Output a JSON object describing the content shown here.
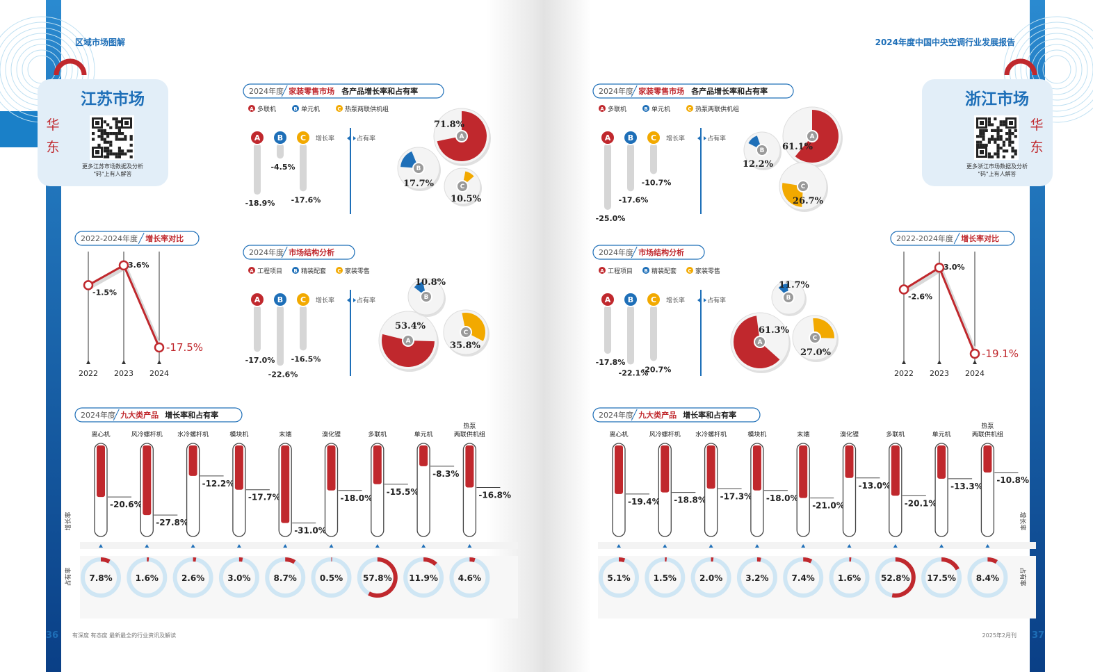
{
  "header": {
    "left": "区域市场图解",
    "right": "2024年度中国中央空调行业发展报告"
  },
  "footer": {
    "left_page": "36",
    "left_slogan": "有深度  有态度  最新最全的行业资讯及解读",
    "right_date": "2025年2月刊",
    "right_page": "37"
  },
  "colors": {
    "blue": "#1e6fb8",
    "red": "#c0282d",
    "light_red": "#e07070",
    "orange": "#f2a900",
    "ring": "#cfe6f4",
    "panel": "#e2eef8"
  },
  "labels": {
    "year2024": "2024年度",
    "years_range": "2022-2024年度",
    "growth_compare": "增长率对比",
    "retail": "家装零售市场",
    "retail_suffix": "各产品增长率和占有率",
    "structure": "市场结构分析",
    "nine_cat": "九大类产品",
    "nine_suffix": "增长率和占有率",
    "growth": "增长率",
    "share": "占有率",
    "growth_v": "增长率",
    "share_v": "占有率",
    "legend_products": [
      "多联机",
      "单元机",
      "热泵两联供机组"
    ],
    "legend_structure": [
      "工程项目",
      "精装配套",
      "家装零售"
    ]
  },
  "markets": [
    {
      "name": "江苏市场",
      "region": "华东",
      "qr_caption": "更多江苏市场数据及分析\n\"码\"上有人解答"
    },
    {
      "name": "浙江市场",
      "region": "华东",
      "qr_caption": "更多浙江市场数据及分析\n\"码\"上有人解答"
    }
  ],
  "chart_data": [
    {
      "id": "js-retail",
      "type": "bar",
      "title": "2024年度 家装零售市场 各产品增长率和占有率",
      "categories": [
        "A",
        "B",
        "C"
      ],
      "series": [
        {
          "name": "增长率",
          "values": [
            -18.9,
            -4.5,
            -17.6
          ]
        },
        {
          "name": "占有率",
          "values": [
            71.8,
            17.7,
            10.5
          ]
        }
      ]
    },
    {
      "id": "js-structure",
      "type": "bar",
      "title": "2024年度 市场结构分析",
      "categories": [
        "A",
        "B",
        "C"
      ],
      "series": [
        {
          "name": "增长率",
          "values": [
            -17.0,
            -22.6,
            -16.5
          ]
        },
        {
          "name": "占有率",
          "values": [
            53.4,
            10.8,
            35.8
          ]
        }
      ]
    },
    {
      "id": "js-trend",
      "type": "line",
      "title": "2022-2024年度 增长率对比",
      "x": [
        "2022",
        "2023",
        "2024"
      ],
      "y": [
        -1.5,
        3.6,
        -17.5
      ]
    },
    {
      "id": "js-nine",
      "type": "bar",
      "title": "2024年度 九大类产品 增长率和占有率",
      "categories": [
        "离心机",
        "风冷螺杆机",
        "水冷螺杆机",
        "模块机",
        "末端",
        "溴化锂",
        "多联机",
        "单元机",
        "热泵两联供机组"
      ],
      "series": [
        {
          "name": "增长率",
          "values": [
            -20.6,
            -27.8,
            -12.2,
            -17.7,
            -31.0,
            -18.0,
            -15.5,
            -8.3,
            -16.8
          ]
        },
        {
          "name": "占有率",
          "values": [
            7.8,
            1.6,
            2.6,
            3.0,
            8.7,
            0.5,
            57.8,
            11.9,
            4.6
          ]
        }
      ]
    },
    {
      "id": "zj-retail",
      "type": "bar",
      "title": "2024年度 家装零售市场 各产品增长率和占有率",
      "categories": [
        "A",
        "B",
        "C"
      ],
      "series": [
        {
          "name": "增长率",
          "values": [
            -25.0,
            -17.6,
            -10.7
          ]
        },
        {
          "name": "占有率",
          "values": [
            61.1,
            12.2,
            26.7
          ]
        }
      ]
    },
    {
      "id": "zj-structure",
      "type": "bar",
      "title": "2024年度 市场结构分析",
      "categories": [
        "A",
        "B",
        "C"
      ],
      "series": [
        {
          "name": "增长率",
          "values": [
            -17.8,
            -22.1,
            -20.7
          ]
        },
        {
          "name": "占有率",
          "values": [
            61.3,
            11.7,
            27.0
          ]
        }
      ]
    },
    {
      "id": "zj-trend",
      "type": "line",
      "title": "2022-2024年度 增长率对比",
      "x": [
        "2022",
        "2023",
        "2024"
      ],
      "y": [
        -2.6,
        3.0,
        -19.1
      ]
    },
    {
      "id": "zj-nine",
      "type": "bar",
      "title": "2024年度 九大类产品 增长率和占有率",
      "categories": [
        "离心机",
        "风冷螺杆机",
        "水冷螺杆机",
        "模块机",
        "末端",
        "溴化锂",
        "多联机",
        "单元机",
        "热泵两联供机组"
      ],
      "series": [
        {
          "name": "增长率",
          "values": [
            -19.4,
            -18.8,
            -17.3,
            -18.0,
            -21.0,
            -13.0,
            -20.1,
            -13.3,
            -10.8
          ]
        },
        {
          "name": "占有率",
          "values": [
            5.1,
            1.5,
            2.0,
            3.2,
            7.4,
            1.6,
            52.8,
            17.5,
            8.4
          ]
        }
      ]
    }
  ]
}
